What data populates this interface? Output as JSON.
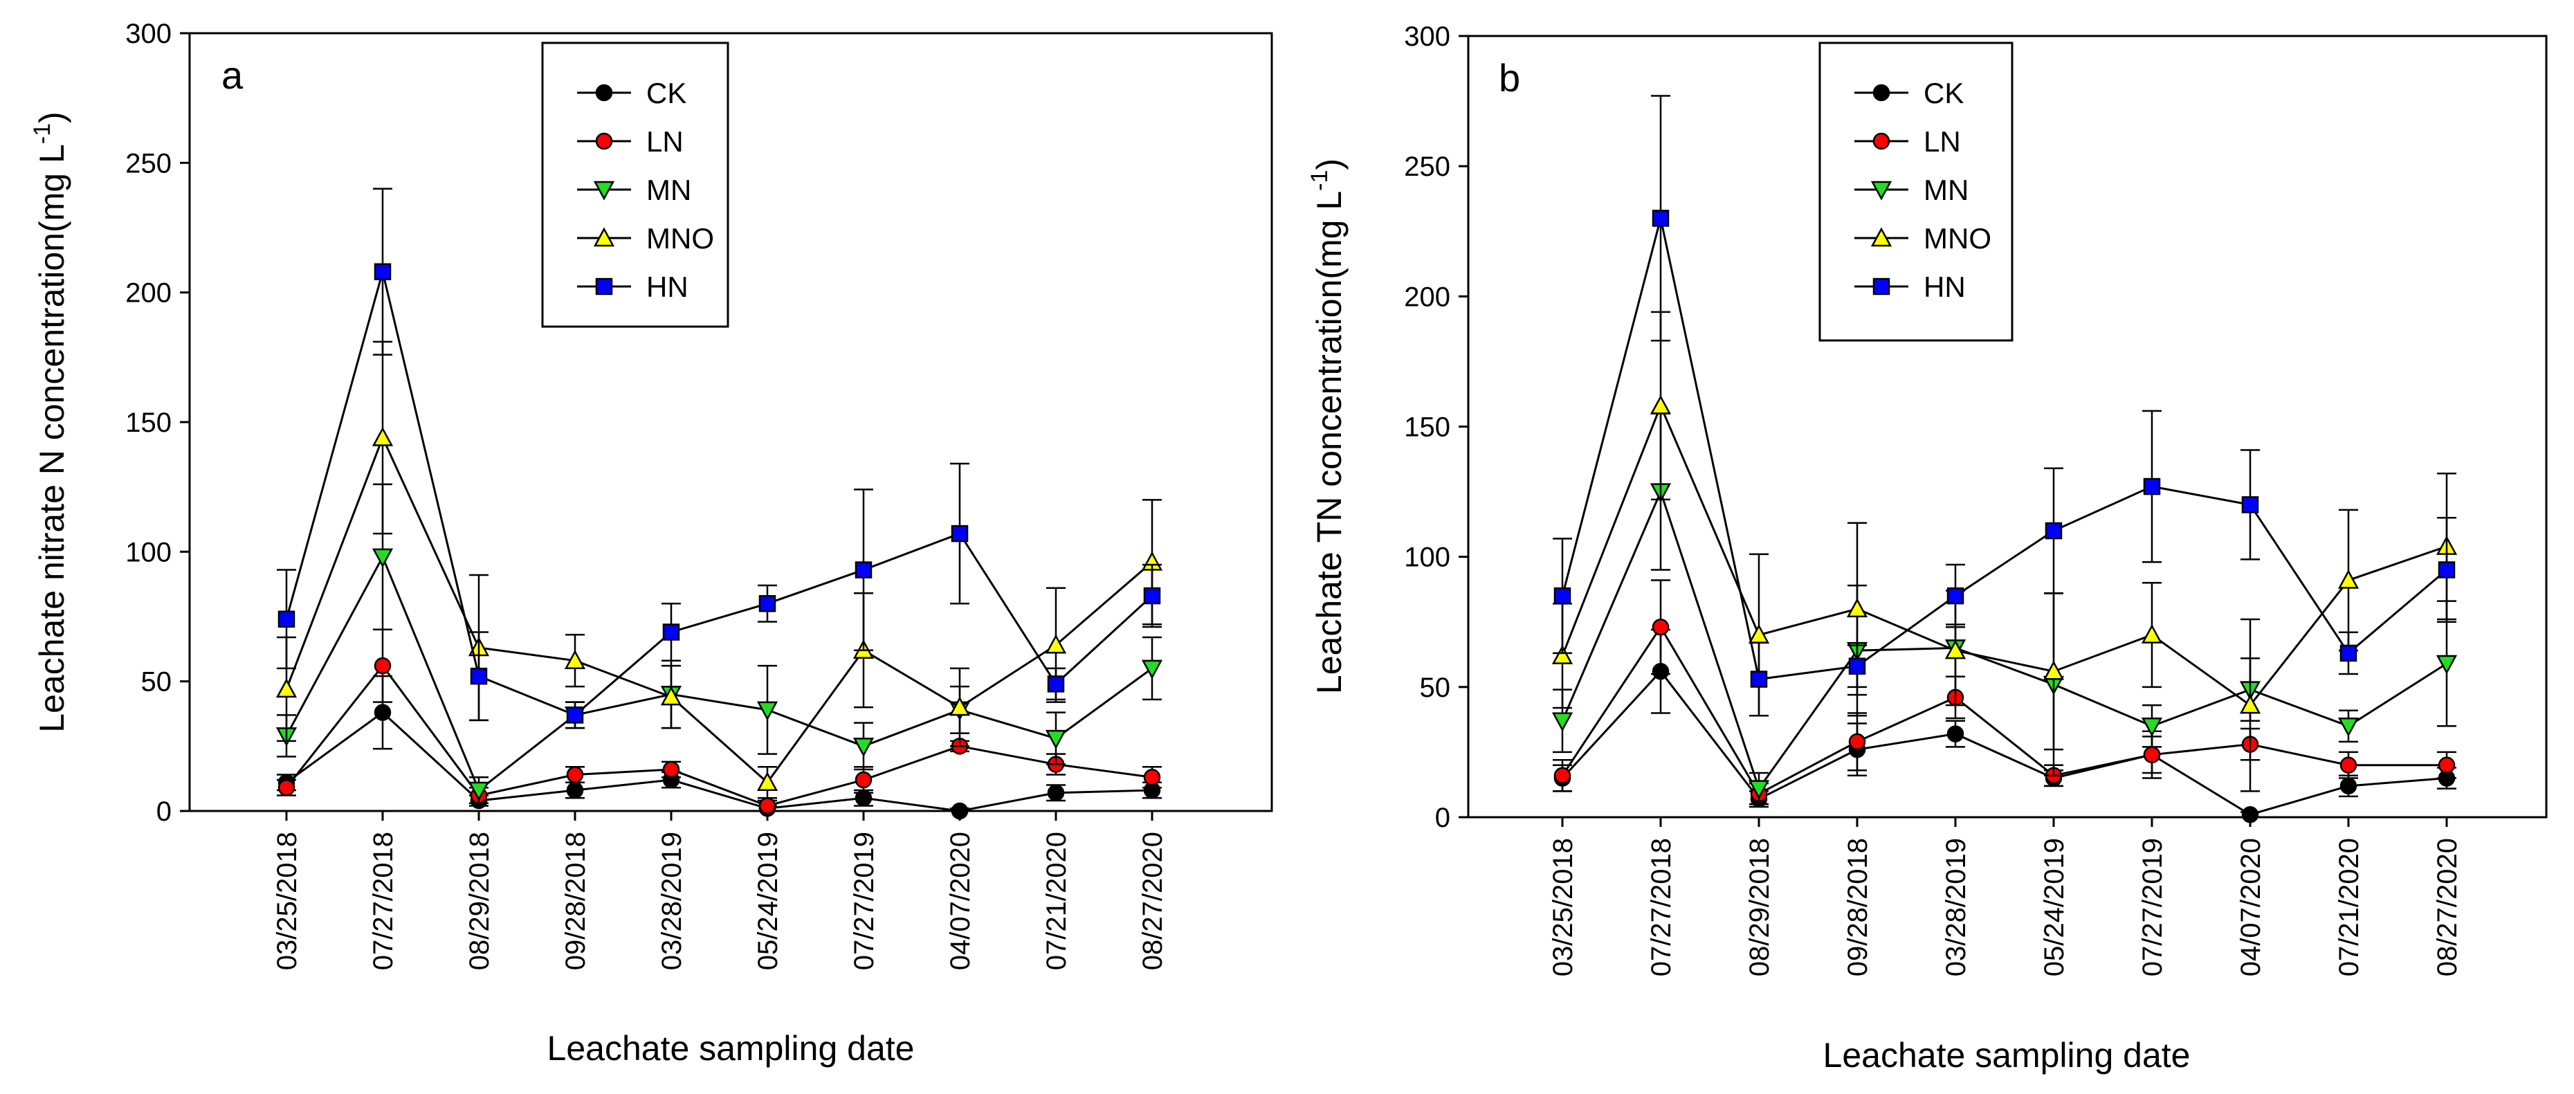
{
  "chart_data": [
    {
      "type": "line",
      "panel_label": "a",
      "ylabel": "Leachate nitrate N concentration(mg L",
      "ylabel_unit_sup": "-1",
      "ylabel_end": ")",
      "xlabel": "Leachate sampling date",
      "ylim": [
        0,
        300
      ],
      "yticks": [
        "0",
        "50",
        "100",
        "150",
        "200",
        "250",
        "300"
      ],
      "categories": [
        "03/25/2018",
        "07/27/2018",
        "08/29/2018",
        "09/28/2018",
        "03/28/2019",
        "05/24/2019",
        "07/27/2019",
        "04/07/2020",
        "07/21/2020",
        "08/27/2020"
      ],
      "legend_position": "top-center",
      "series": [
        {
          "name": "CK",
          "color": "#000000",
          "marker": "circle",
          "values": [
            11,
            38,
            4,
            8,
            12,
            1,
            5,
            0,
            7,
            8
          ],
          "errors": [
            3,
            14,
            2,
            3,
            3,
            1,
            3,
            1,
            3,
            3
          ]
        },
        {
          "name": "LN",
          "color": "#ff0000",
          "marker": "circle",
          "values": [
            9,
            56,
            6,
            14,
            16,
            2,
            12,
            25,
            18,
            13
          ],
          "errors": [
            3,
            14,
            3,
            3,
            3,
            2,
            5,
            2,
            4,
            4
          ]
        },
        {
          "name": "MN",
          "color": "#22dd22",
          "marker": "triangle-down",
          "values": [
            29,
            98,
            8,
            37,
            45,
            39,
            25,
            39,
            28,
            55
          ],
          "errors": [
            8,
            28,
            5,
            5,
            13,
            17,
            9,
            9,
            10,
            12
          ]
        },
        {
          "name": "MNO",
          "color": "#ffff00",
          "marker": "triangle-up",
          "values": [
            47,
            144,
            63,
            58,
            44,
            11,
            62,
            40,
            64,
            96
          ],
          "errors": [
            20,
            37,
            28,
            10,
            12,
            6,
            22,
            15,
            22,
            24
          ]
        },
        {
          "name": "HN",
          "color": "#0000ff",
          "marker": "square",
          "values": [
            74,
            208,
            52,
            37,
            69,
            80,
            93,
            107,
            49,
            83
          ],
          "errors": [
            19,
            32,
            17,
            5,
            11,
            7,
            31,
            27,
            6,
            12
          ]
        }
      ]
    },
    {
      "type": "line",
      "panel_label": "b",
      "ylabel": "Leachate TN concentration(mg L",
      "ylabel_unit_sup": "-1",
      "ylabel_end": ")",
      "xlabel": "Leachate sampling date",
      "ylim": [
        0,
        300
      ],
      "yticks": [
        "0",
        "50",
        "100",
        "150",
        "200",
        "250",
        "300"
      ],
      "categories": [
        "03/25/2018",
        "07/27/2018",
        "08/29/2018",
        "09/28/2018",
        "03/28/2019",
        "05/24/2019",
        "07/27/2019",
        "04/07/2020",
        "07/21/2020",
        "08/27/2020"
      ],
      "legend_position": "top-center",
      "series": [
        {
          "name": "CK",
          "color": "#000000",
          "marker": "circle",
          "values": [
            15,
            56,
            7,
            26,
            32,
            15,
            24,
            1,
            12,
            15
          ],
          "errors": [
            5,
            16,
            3,
            10,
            5,
            3,
            9,
            1,
            4,
            4
          ]
        },
        {
          "name": "LN",
          "color": "#ff0000",
          "marker": "circle",
          "values": [
            16,
            73,
            9,
            29,
            46,
            16,
            24,
            28,
            20,
            20
          ],
          "errors": [
            6,
            18,
            4,
            11,
            8,
            4,
            7,
            6,
            5,
            5
          ]
        },
        {
          "name": "MN",
          "color": "#22dd22",
          "marker": "triangle-down",
          "values": [
            37,
            125,
            11,
            64,
            65,
            51,
            35,
            49,
            35,
            59
          ],
          "errors": [
            12,
            30,
            6,
            25,
            22,
            35,
            8,
            12,
            6,
            24
          ]
        },
        {
          "name": "MNO",
          "color": "#ffff00",
          "marker": "triangle-up",
          "values": [
            62,
            158,
            70,
            80,
            64,
            56,
            70,
            43,
            91,
            104
          ],
          "errors": [
            20,
            36,
            31,
            33,
            10,
            30,
            20,
            33,
            27,
            28
          ]
        },
        {
          "name": "HN",
          "color": "#0000ff",
          "marker": "square",
          "values": [
            85,
            230,
            53,
            58,
            85,
            110,
            127,
            120,
            63,
            95
          ],
          "errors": [
            22,
            47,
            14,
            8,
            12,
            24,
            29,
            21,
            8,
            20
          ]
        }
      ]
    }
  ]
}
